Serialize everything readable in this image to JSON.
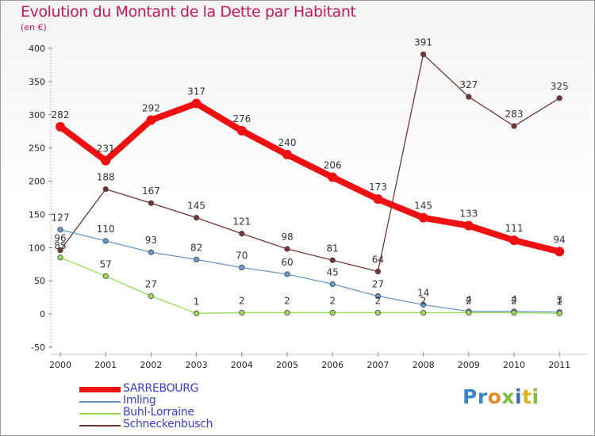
{
  "chart_data": {
    "type": "line",
    "title": "Evolution du Montant de la Dette par Habitant",
    "subtitle": "(en €)",
    "x": [
      "2000",
      "2001",
      "2002",
      "2003",
      "2004",
      "2005",
      "2006",
      "2007",
      "2008",
      "2009",
      "2010",
      "2011"
    ],
    "ylim": [
      -50,
      400
    ],
    "yticks": [
      -50,
      0,
      50,
      100,
      150,
      200,
      250,
      300,
      350,
      400
    ],
    "grid": false,
    "legend_position": "bottom-left",
    "series": [
      {
        "name": "SARREBOURG",
        "color": "#ee1111",
        "values": [
          282,
          231,
          292,
          317,
          276,
          240,
          206,
          173,
          145,
          133,
          111,
          94
        ],
        "labels": [
          "282",
          "231",
          "292",
          "317",
          "276",
          "240",
          "206",
          "173",
          "145",
          "133",
          "111",
          "94"
        ]
      },
      {
        "name": "Imling",
        "color": "#6699cc",
        "values": [
          127,
          110,
          93,
          82,
          70,
          60,
          45,
          27,
          14,
          4,
          4,
          3
        ],
        "labels": [
          "127",
          "110",
          "93",
          "82",
          "70",
          "60",
          "45",
          "27",
          "14",
          "4",
          "4",
          "3"
        ]
      },
      {
        "name": "Buhl-Lorraine",
        "color": "#99dd55",
        "values": [
          85,
          57,
          27,
          1,
          2,
          2,
          2,
          2,
          2,
          2,
          2,
          1
        ],
        "labels": [
          "85",
          "57",
          "27",
          "1",
          "2",
          "2",
          "2",
          "2",
          "2",
          "2",
          "2",
          "1"
        ]
      },
      {
        "name": "Schneckenbusch",
        "color": "#773333",
        "values": [
          96,
          188,
          167,
          145,
          121,
          98,
          81,
          64,
          391,
          327,
          283,
          325
        ],
        "labels": [
          "96",
          "188",
          "167",
          "145",
          "121",
          "98",
          "81",
          "64",
          "391",
          "327",
          "283",
          "325"
        ]
      }
    ]
  },
  "logo": {
    "p": "Pr",
    "o": "o",
    "x": "x",
    "i1": "i",
    "t": "t",
    "i2": "i"
  }
}
